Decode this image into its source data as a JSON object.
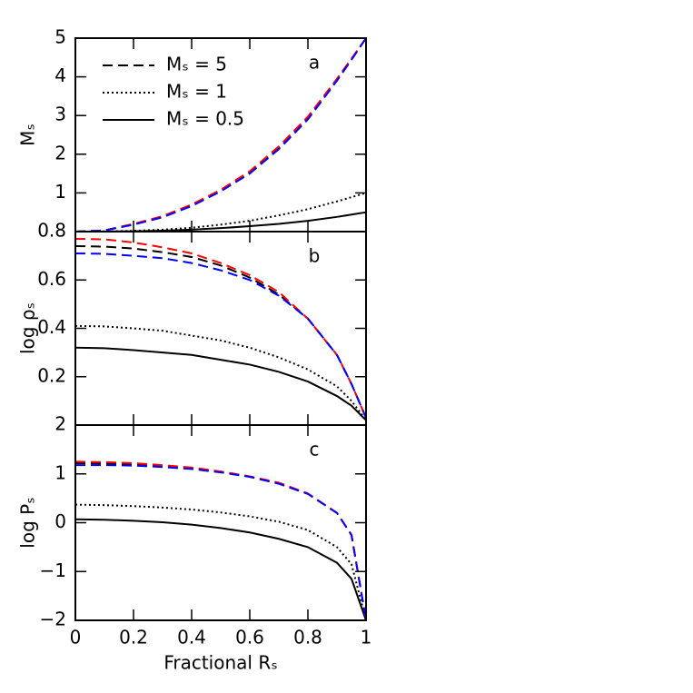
{
  "chart_data": [
    {
      "type": "line",
      "panel_label": "a",
      "ylabel": "Mₛ",
      "xlim": [
        0,
        1
      ],
      "ylim": [
        0,
        5
      ],
      "yticks": [
        1,
        2,
        3,
        4,
        5
      ],
      "xticks": [
        0,
        0.2,
        0.4,
        0.6,
        0.8,
        1
      ],
      "show_xtick_labels": false,
      "legend": "upper left",
      "x": [
        0,
        0.1,
        0.2,
        0.3,
        0.4,
        0.5,
        0.6,
        0.7,
        0.8,
        0.9,
        0.95,
        1
      ],
      "series": [
        {
          "name": "Mₛ = 5",
          "color": "#000000",
          "dash": "dashed",
          "values": [
            0,
            0.03,
            0.19,
            0.38,
            0.68,
            1.06,
            1.53,
            2.16,
            2.93,
            3.92,
            4.45,
            5
          ]
        },
        {
          "name": "Mₛ = 1",
          "color": "#000000",
          "dash": "dotted",
          "values": [
            0,
            0.005,
            0.02,
            0.05,
            0.1,
            0.18,
            0.28,
            0.42,
            0.58,
            0.78,
            0.89,
            1.0
          ]
        },
        {
          "name": "Mₛ = 0.5",
          "color": "#000000",
          "dash": "solid",
          "values": [
            0,
            0.003,
            0.01,
            0.025,
            0.05,
            0.09,
            0.14,
            0.2,
            0.28,
            0.38,
            0.44,
            0.5
          ]
        },
        {
          "color": "#ff0000",
          "dash": "dashed",
          "values": [
            0,
            0.03,
            0.2,
            0.4,
            0.7,
            1.08,
            1.56,
            2.2,
            2.97,
            3.95,
            4.47,
            5
          ]
        },
        {
          "color": "#0000ff",
          "dash": "dashed",
          "values": [
            0,
            0.03,
            0.18,
            0.37,
            0.66,
            1.04,
            1.5,
            2.13,
            2.9,
            3.9,
            4.44,
            5
          ]
        }
      ]
    },
    {
      "type": "line",
      "panel_label": "b",
      "ylabel": "log ρₛ",
      "xlim": [
        0,
        1
      ],
      "ylim": [
        0,
        0.8
      ],
      "yticks": [
        0.2,
        0.4,
        0.6,
        0.8
      ],
      "xticks": [
        0,
        0.2,
        0.4,
        0.6,
        0.8,
        1
      ],
      "show_xtick_labels": false,
      "x": [
        0,
        0.1,
        0.2,
        0.3,
        0.4,
        0.5,
        0.6,
        0.7,
        0.8,
        0.9,
        0.95,
        1
      ],
      "series": [
        {
          "color": "#000000",
          "dash": "dashed",
          "values": [
            0.74,
            0.738,
            0.73,
            0.715,
            0.695,
            0.66,
            0.61,
            0.54,
            0.44,
            0.29,
            0.17,
            0.03
          ]
        },
        {
          "color": "#000000",
          "dash": "dotted",
          "values": [
            0.41,
            0.408,
            0.4,
            0.39,
            0.37,
            0.35,
            0.32,
            0.28,
            0.23,
            0.16,
            0.1,
            0.02
          ]
        },
        {
          "color": "#000000",
          "dash": "solid",
          "values": [
            0.32,
            0.318,
            0.31,
            0.3,
            0.29,
            0.27,
            0.25,
            0.22,
            0.18,
            0.12,
            0.08,
            0.02
          ]
        },
        {
          "color": "#ff0000",
          "dash": "dashed",
          "values": [
            0.77,
            0.768,
            0.755,
            0.735,
            0.71,
            0.67,
            0.62,
            0.55,
            0.44,
            0.29,
            0.17,
            0.03
          ]
        },
        {
          "color": "#0000ff",
          "dash": "dashed",
          "values": [
            0.71,
            0.708,
            0.7,
            0.69,
            0.67,
            0.64,
            0.6,
            0.535,
            0.44,
            0.29,
            0.17,
            0.03
          ]
        }
      ]
    },
    {
      "type": "line",
      "panel_label": "c",
      "ylabel": "log Pₛ",
      "xlabel": "Fractional Rₛ",
      "xlim": [
        0,
        1
      ],
      "ylim": [
        -2,
        2
      ],
      "yticks": [
        {
          "value": -2,
          "label": "−2"
        },
        {
          "value": -1,
          "label": "−1"
        },
        0,
        1,
        2
      ],
      "xticks": [
        0,
        0.2,
        0.4,
        0.6,
        0.8,
        1
      ],
      "show_xtick_labels": true,
      "x": [
        0,
        0.1,
        0.2,
        0.3,
        0.4,
        0.5,
        0.6,
        0.7,
        0.8,
        0.9,
        0.95,
        1
      ],
      "series": [
        {
          "color": "#000000",
          "dash": "dashed",
          "values": [
            1.22,
            1.21,
            1.19,
            1.16,
            1.11,
            1.04,
            0.94,
            0.8,
            0.59,
            0.2,
            -0.25,
            -2
          ]
        },
        {
          "color": "#000000",
          "dash": "dotted",
          "values": [
            0.37,
            0.36,
            0.34,
            0.31,
            0.27,
            0.21,
            0.13,
            0.02,
            -0.15,
            -0.5,
            -0.85,
            -2
          ]
        },
        {
          "color": "#000000",
          "dash": "solid",
          "values": [
            0.07,
            0.06,
            0.04,
            0.01,
            -0.04,
            -0.11,
            -0.2,
            -0.33,
            -0.5,
            -0.82,
            -1.15,
            -2
          ]
        },
        {
          "color": "#ff0000",
          "dash": "dashed",
          "values": [
            1.25,
            1.24,
            1.22,
            1.18,
            1.13,
            1.05,
            0.95,
            0.82,
            0.6,
            0.2,
            -0.25,
            -2
          ]
        },
        {
          "color": "#0000ff",
          "dash": "dashed",
          "values": [
            1.18,
            1.18,
            1.17,
            1.14,
            1.1,
            1.03,
            0.94,
            0.8,
            0.59,
            0.2,
            -0.25,
            -2
          ]
        }
      ]
    }
  ]
}
